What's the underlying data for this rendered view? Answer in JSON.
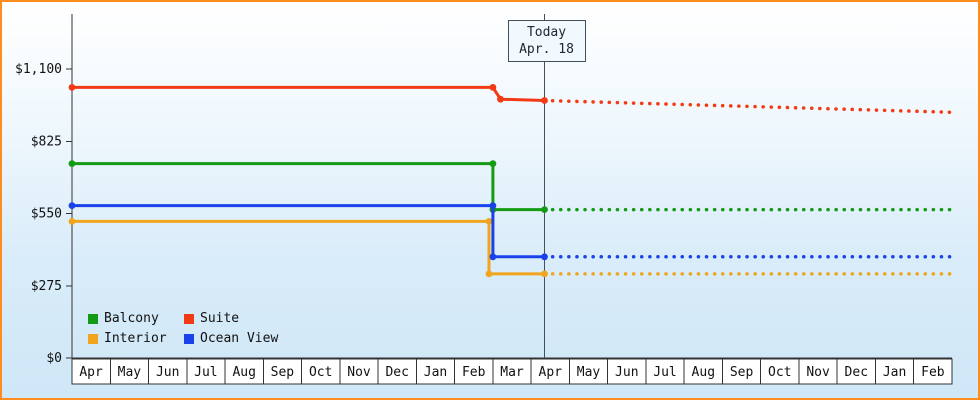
{
  "chart_data": {
    "type": "line",
    "months": [
      "Apr",
      "May",
      "Jun",
      "Jul",
      "Aug",
      "Sep",
      "Oct",
      "Nov",
      "Dec",
      "Jan",
      "Feb",
      "Mar",
      "Apr",
      "May",
      "Jun",
      "Jul",
      "Aug",
      "Sep",
      "Oct",
      "Nov",
      "Dec",
      "Jan",
      "Feb"
    ],
    "y_ticks": [
      {
        "label": "$0",
        "value": 0
      },
      {
        "label": "$275",
        "value": 275
      },
      {
        "label": "$550",
        "value": 550
      },
      {
        "label": "$825",
        "value": 825
      },
      {
        "label": "$1,100",
        "value": 1100
      }
    ],
    "y_range": [
      0,
      1100
    ],
    "grid": false,
    "legend_position": "bottom-left",
    "today": {
      "title": "Today",
      "date": "Apr. 18",
      "month_index": 12.35
    },
    "series": [
      {
        "name": "Balcony",
        "color": "#149b14",
        "history": [
          [
            0,
            740
          ],
          [
            11,
            740
          ],
          [
            11,
            565
          ],
          [
            12.35,
            565
          ]
        ],
        "forecast": [
          [
            12.35,
            565
          ],
          [
            23,
            565
          ]
        ]
      },
      {
        "name": "Suite",
        "color": "#f23a15",
        "history": [
          [
            0,
            1030
          ],
          [
            11,
            1030
          ],
          [
            11.2,
            985
          ],
          [
            12.35,
            980
          ]
        ],
        "forecast": [
          [
            12.35,
            980
          ],
          [
            23,
            935
          ]
        ]
      },
      {
        "name": "Interior",
        "color": "#f0a51d",
        "history": [
          [
            0,
            520
          ],
          [
            10.9,
            520
          ],
          [
            10.9,
            320
          ],
          [
            12.35,
            320
          ]
        ],
        "forecast": [
          [
            12.35,
            320
          ],
          [
            23,
            320
          ]
        ]
      },
      {
        "name": "Ocean View",
        "color": "#1a42ea",
        "history": [
          [
            0,
            580
          ],
          [
            11,
            580
          ],
          [
            11,
            385
          ],
          [
            12.35,
            385
          ]
        ],
        "forecast": [
          [
            12.35,
            385
          ],
          [
            23,
            385
          ]
        ]
      }
    ],
    "colors": {
      "frame_border": "#ff8c1f",
      "axis": "#333333",
      "today_line": "#44505c",
      "month_cell_fill": "#ffffff",
      "background_top": "#ffffff",
      "background_bottom": "#cfe7f7"
    }
  }
}
